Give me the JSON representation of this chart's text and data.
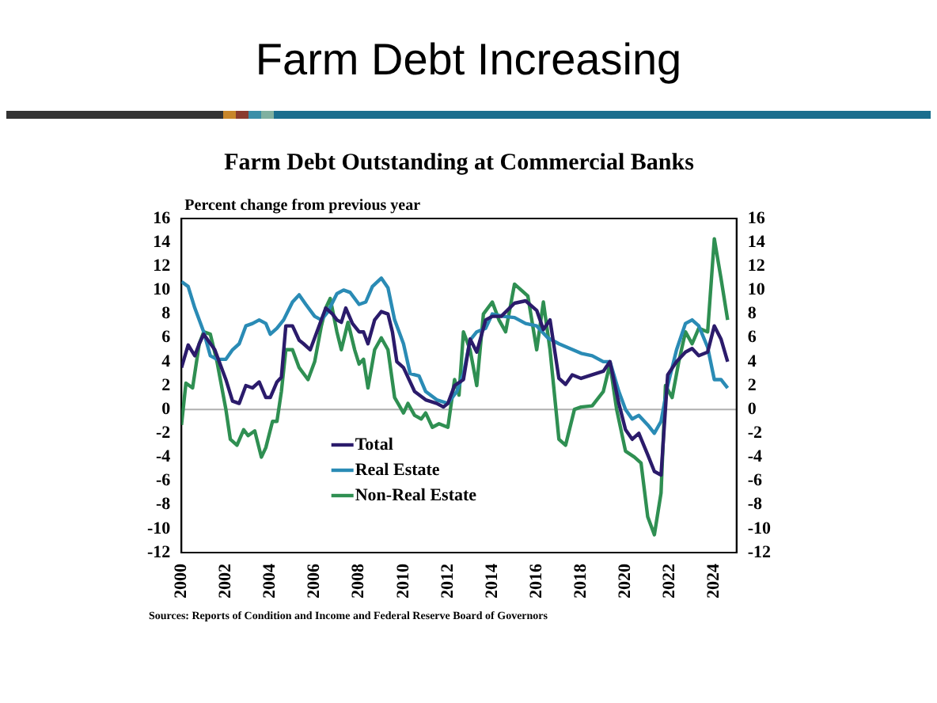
{
  "chart_data": {
    "type": "line",
    "title": "Farm Debt Increasing",
    "subtitle": "Farm Debt Outstanding at Commercial Banks",
    "ylabel": "Percent change from previous year",
    "annotations": [
      "Sources: Reports of Condition and Income and Federal Reserve Board of Governors"
    ],
    "xlim": [
      2000,
      2025
    ],
    "xticks": [
      2000,
      2002,
      2004,
      2006,
      2008,
      2010,
      2012,
      2014,
      2016,
      2018,
      2020,
      2022,
      2024
    ],
    "ylim": [
      -12,
      16
    ],
    "yticks": [
      -12,
      -10,
      -8,
      -6,
      -4,
      -2,
      0,
      2,
      4,
      6,
      8,
      10,
      12,
      14,
      16
    ],
    "y2lim": [
      -12,
      16
    ],
    "y2ticks": [
      -12,
      -10,
      -8,
      -6,
      -4,
      -2,
      0,
      2,
      4,
      6,
      8,
      10,
      12,
      14,
      16
    ],
    "ref_lines": [
      {
        "axis": "y",
        "value": 0,
        "color": "#b0b0b0"
      }
    ],
    "grid": false,
    "legend": "bottom left",
    "marker": "none",
    "line_style": "solid",
    "series": [
      {
        "name": "Total",
        "color": "#2b1b6b",
        "x": [
          2000,
          2000.3,
          2000.6,
          2000.8,
          2001,
          2001.5,
          2002,
          2002.3,
          2002.6,
          2002.9,
          2003.2,
          2003.5,
          2003.8,
          2004,
          2004.3,
          2004.5,
          2004.7,
          2005,
          2005.3,
          2005.5,
          2005.8,
          2006,
          2006.3,
          2006.5,
          2006.8,
          2007,
          2007.2,
          2007.4,
          2007.7,
          2008,
          2008.2,
          2008.4,
          2008.7,
          2009,
          2009.3,
          2009.5,
          2009.7,
          2010,
          2010.5,
          2011,
          2011.5,
          2011.8,
          2012,
          2012.3,
          2012.7,
          2013,
          2013.3,
          2013.7,
          2014,
          2014.4,
          2015,
          2015.5,
          2016,
          2016.3,
          2016.6,
          2017,
          2017.3,
          2017.6,
          2018,
          2018.5,
          2019,
          2019.3,
          2019.7,
          2020,
          2020.3,
          2020.6,
          2021,
          2021.3,
          2021.6,
          2021.9,
          2022.3,
          2022.7,
          2023,
          2023.3,
          2023.7,
          2024,
          2024.3,
          2024.6
        ],
        "values": [
          3.5,
          5.4,
          4.5,
          5.5,
          6.3,
          5,
          2.5,
          0.7,
          0.5,
          2,
          1.8,
          2.3,
          1,
          1,
          2.3,
          2.7,
          7,
          7,
          5.8,
          5.5,
          5,
          6,
          7.5,
          8.5,
          8,
          7.5,
          7.3,
          8.5,
          7.2,
          6.5,
          6.5,
          5.5,
          7.5,
          8.2,
          8,
          6.5,
          4,
          3.5,
          1.5,
          0.8,
          0.5,
          0.2,
          0.5,
          2,
          2.5,
          5.9,
          4.8,
          7.5,
          7.8,
          7.8,
          8.9,
          9.1,
          8.3,
          6.7,
          7.5,
          2.6,
          2.1,
          2.9,
          2.6,
          2.9,
          3.2,
          4,
          0.5,
          -1.7,
          -2.5,
          -2,
          -3.8,
          -5.2,
          -5.5,
          2.9,
          4,
          4.8,
          5.1,
          4.5,
          4.8,
          7,
          5.9,
          4
        ]
      },
      {
        "name": "Real Estate",
        "color": "#2a8bb5",
        "x": [
          2000,
          2000.3,
          2000.6,
          2001,
          2001.3,
          2001.6,
          2002,
          2002.3,
          2002.6,
          2002.9,
          2003.2,
          2003.5,
          2003.8,
          2004,
          2004.3,
          2004.6,
          2005,
          2005.3,
          2005.6,
          2006,
          2006.3,
          2006.6,
          2007,
          2007.3,
          2007.6,
          2008,
          2008.3,
          2008.6,
          2009,
          2009.3,
          2009.6,
          2010,
          2010.3,
          2010.7,
          2011,
          2011.5,
          2012,
          2012.4,
          2012.7,
          2013,
          2013.3,
          2013.7,
          2014,
          2014.5,
          2015,
          2015.5,
          2016,
          2016.5,
          2017,
          2017.5,
          2018,
          2018.5,
          2019,
          2019.3,
          2019.7,
          2020,
          2020.3,
          2020.6,
          2021,
          2021.3,
          2021.6,
          2021.9,
          2022.3,
          2022.7,
          2023,
          2023.3,
          2023.7,
          2024,
          2024.3,
          2024.6
        ],
        "values": [
          10.7,
          10.3,
          8.5,
          6.5,
          4.5,
          4.2,
          4.2,
          5,
          5.5,
          7,
          7.2,
          7.5,
          7.2,
          6.3,
          6.8,
          7.5,
          9,
          9.6,
          8.8,
          7.8,
          7.5,
          8.2,
          9.7,
          10,
          9.8,
          8.8,
          9,
          10.3,
          11,
          10.2,
          7.5,
          5.5,
          3,
          2.8,
          1.5,
          0.8,
          0.5,
          1.5,
          3,
          5.8,
          6.5,
          6.8,
          8,
          7.8,
          7.7,
          7.2,
          7,
          6,
          5.5,
          5.1,
          4.7,
          4.5,
          4,
          4,
          1.5,
          0,
          -0.8,
          -0.5,
          -1.3,
          -2,
          -1,
          2,
          5,
          7.2,
          7.5,
          7,
          5.2,
          2.5,
          2.5,
          1.8
        ]
      },
      {
        "name": "Non-Real Estate",
        "color": "#2f8f52",
        "x": [
          2000,
          2000.2,
          2000.5,
          2000.8,
          2001,
          2001.3,
          2001.6,
          2002,
          2002.2,
          2002.5,
          2002.8,
          2003,
          2003.3,
          2003.6,
          2003.8,
          2004.1,
          2004.3,
          2004.5,
          2004.7,
          2005,
          2005.3,
          2005.7,
          2006,
          2006.3,
          2006.5,
          2006.7,
          2007,
          2007.2,
          2007.5,
          2007.8,
          2008,
          2008.2,
          2008.4,
          2008.7,
          2009,
          2009.3,
          2009.6,
          2010,
          2010.2,
          2010.5,
          2010.8,
          2011,
          2011.3,
          2011.6,
          2012,
          2012.3,
          2012.5,
          2012.7,
          2013,
          2013.3,
          2013.6,
          2014,
          2014.3,
          2014.6,
          2015,
          2015.3,
          2015.6,
          2016,
          2016.3,
          2016.6,
          2017,
          2017.3,
          2017.7,
          2018,
          2018.5,
          2019,
          2019.3,
          2019.6,
          2020,
          2020.4,
          2020.7,
          2021,
          2021.3,
          2021.6,
          2021.8,
          2022.1,
          2022.4,
          2022.7,
          2023,
          2023.3,
          2023.7,
          2024,
          2024.3,
          2024.6
        ],
        "values": [
          -1.3,
          2.2,
          1.8,
          5.5,
          6.5,
          6.3,
          4,
          0,
          -2.5,
          -3,
          -1.7,
          -2.2,
          -1.8,
          -4,
          -3.2,
          -1,
          -1,
          1.5,
          5,
          5,
          3.5,
          2.5,
          4,
          7,
          8.5,
          9.3,
          6.5,
          5,
          7.3,
          5,
          3.8,
          4.2,
          1.8,
          5,
          6,
          5,
          1,
          -0.3,
          0.5,
          -0.5,
          -0.8,
          -0.3,
          -1.5,
          -1.2,
          -1.5,
          2.5,
          1.2,
          6.5,
          5,
          2,
          8,
          9,
          7.5,
          6.5,
          10.5,
          10,
          9.5,
          5,
          9,
          5,
          -2.5,
          -3,
          0,
          0.2,
          0.3,
          1.5,
          3.8,
          0,
          -3.5,
          -4,
          -4.5,
          -9,
          -10.5,
          -7,
          2,
          1,
          4,
          6.5,
          5.5,
          6.8,
          6.5,
          14.3,
          11,
          7.5
        ]
      }
    ]
  }
}
